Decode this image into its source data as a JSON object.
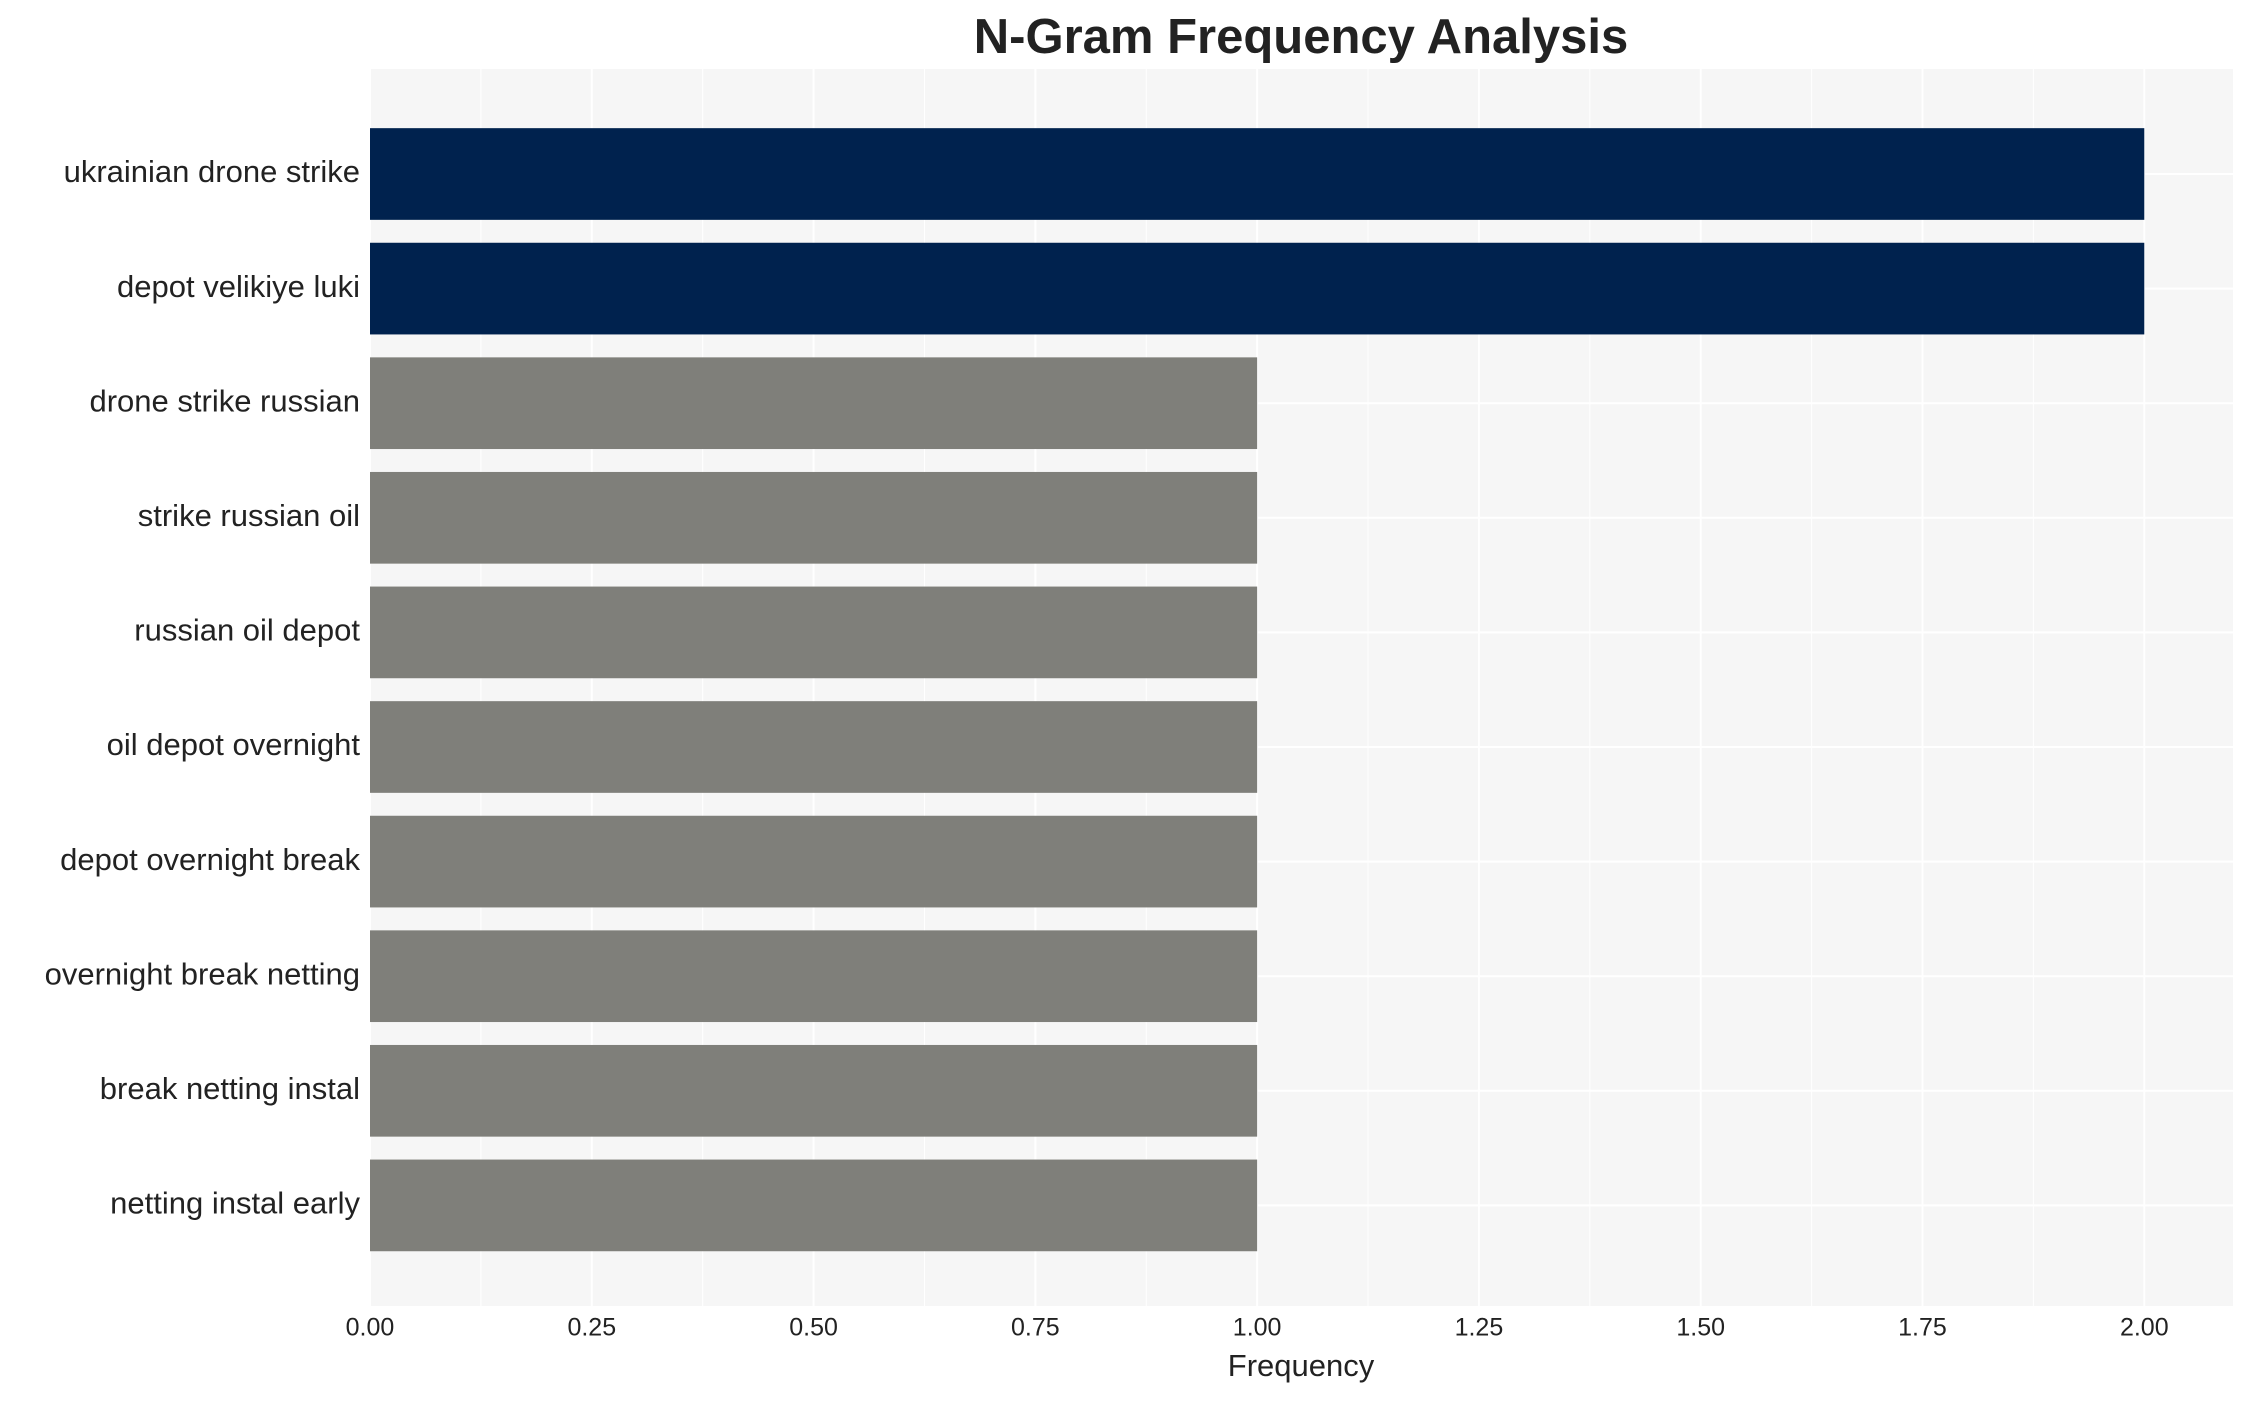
{
  "chart_data": {
    "type": "bar",
    "orientation": "horizontal",
    "title": "N-Gram Frequency Analysis",
    "x_label": "Frequency",
    "categories": [
      "ukrainian drone strike",
      "depot velikiye luki",
      "drone strike russian",
      "strike russian oil",
      "russian oil depot",
      "oil depot overnight",
      "depot overnight break",
      "overnight break netting",
      "break netting instal",
      "netting instal early"
    ],
    "values": [
      2,
      2,
      1,
      1,
      1,
      1,
      1,
      1,
      1,
      1
    ],
    "colors": [
      "#00224e",
      "#00224e",
      "#7f7f7a",
      "#7f7f7a",
      "#7f7f7a",
      "#7f7f7a",
      "#7f7f7a",
      "#7f7f7a",
      "#7f7f7a",
      "#7f7f7a"
    ],
    "xlim": [
      0,
      2.1
    ],
    "xticks": [
      {
        "value": 0,
        "label": "0.00"
      },
      {
        "value": 0.25,
        "label": "0.25"
      },
      {
        "value": 0.5,
        "label": "0.50"
      },
      {
        "value": 0.75,
        "label": "0.75"
      },
      {
        "value": 1,
        "label": "1.00"
      },
      {
        "value": 1.25,
        "label": "1.25"
      },
      {
        "value": 1.5,
        "label": "1.50"
      },
      {
        "value": 1.75,
        "label": "1.75"
      },
      {
        "value": 2,
        "label": "2.00"
      }
    ],
    "grid": true
  }
}
